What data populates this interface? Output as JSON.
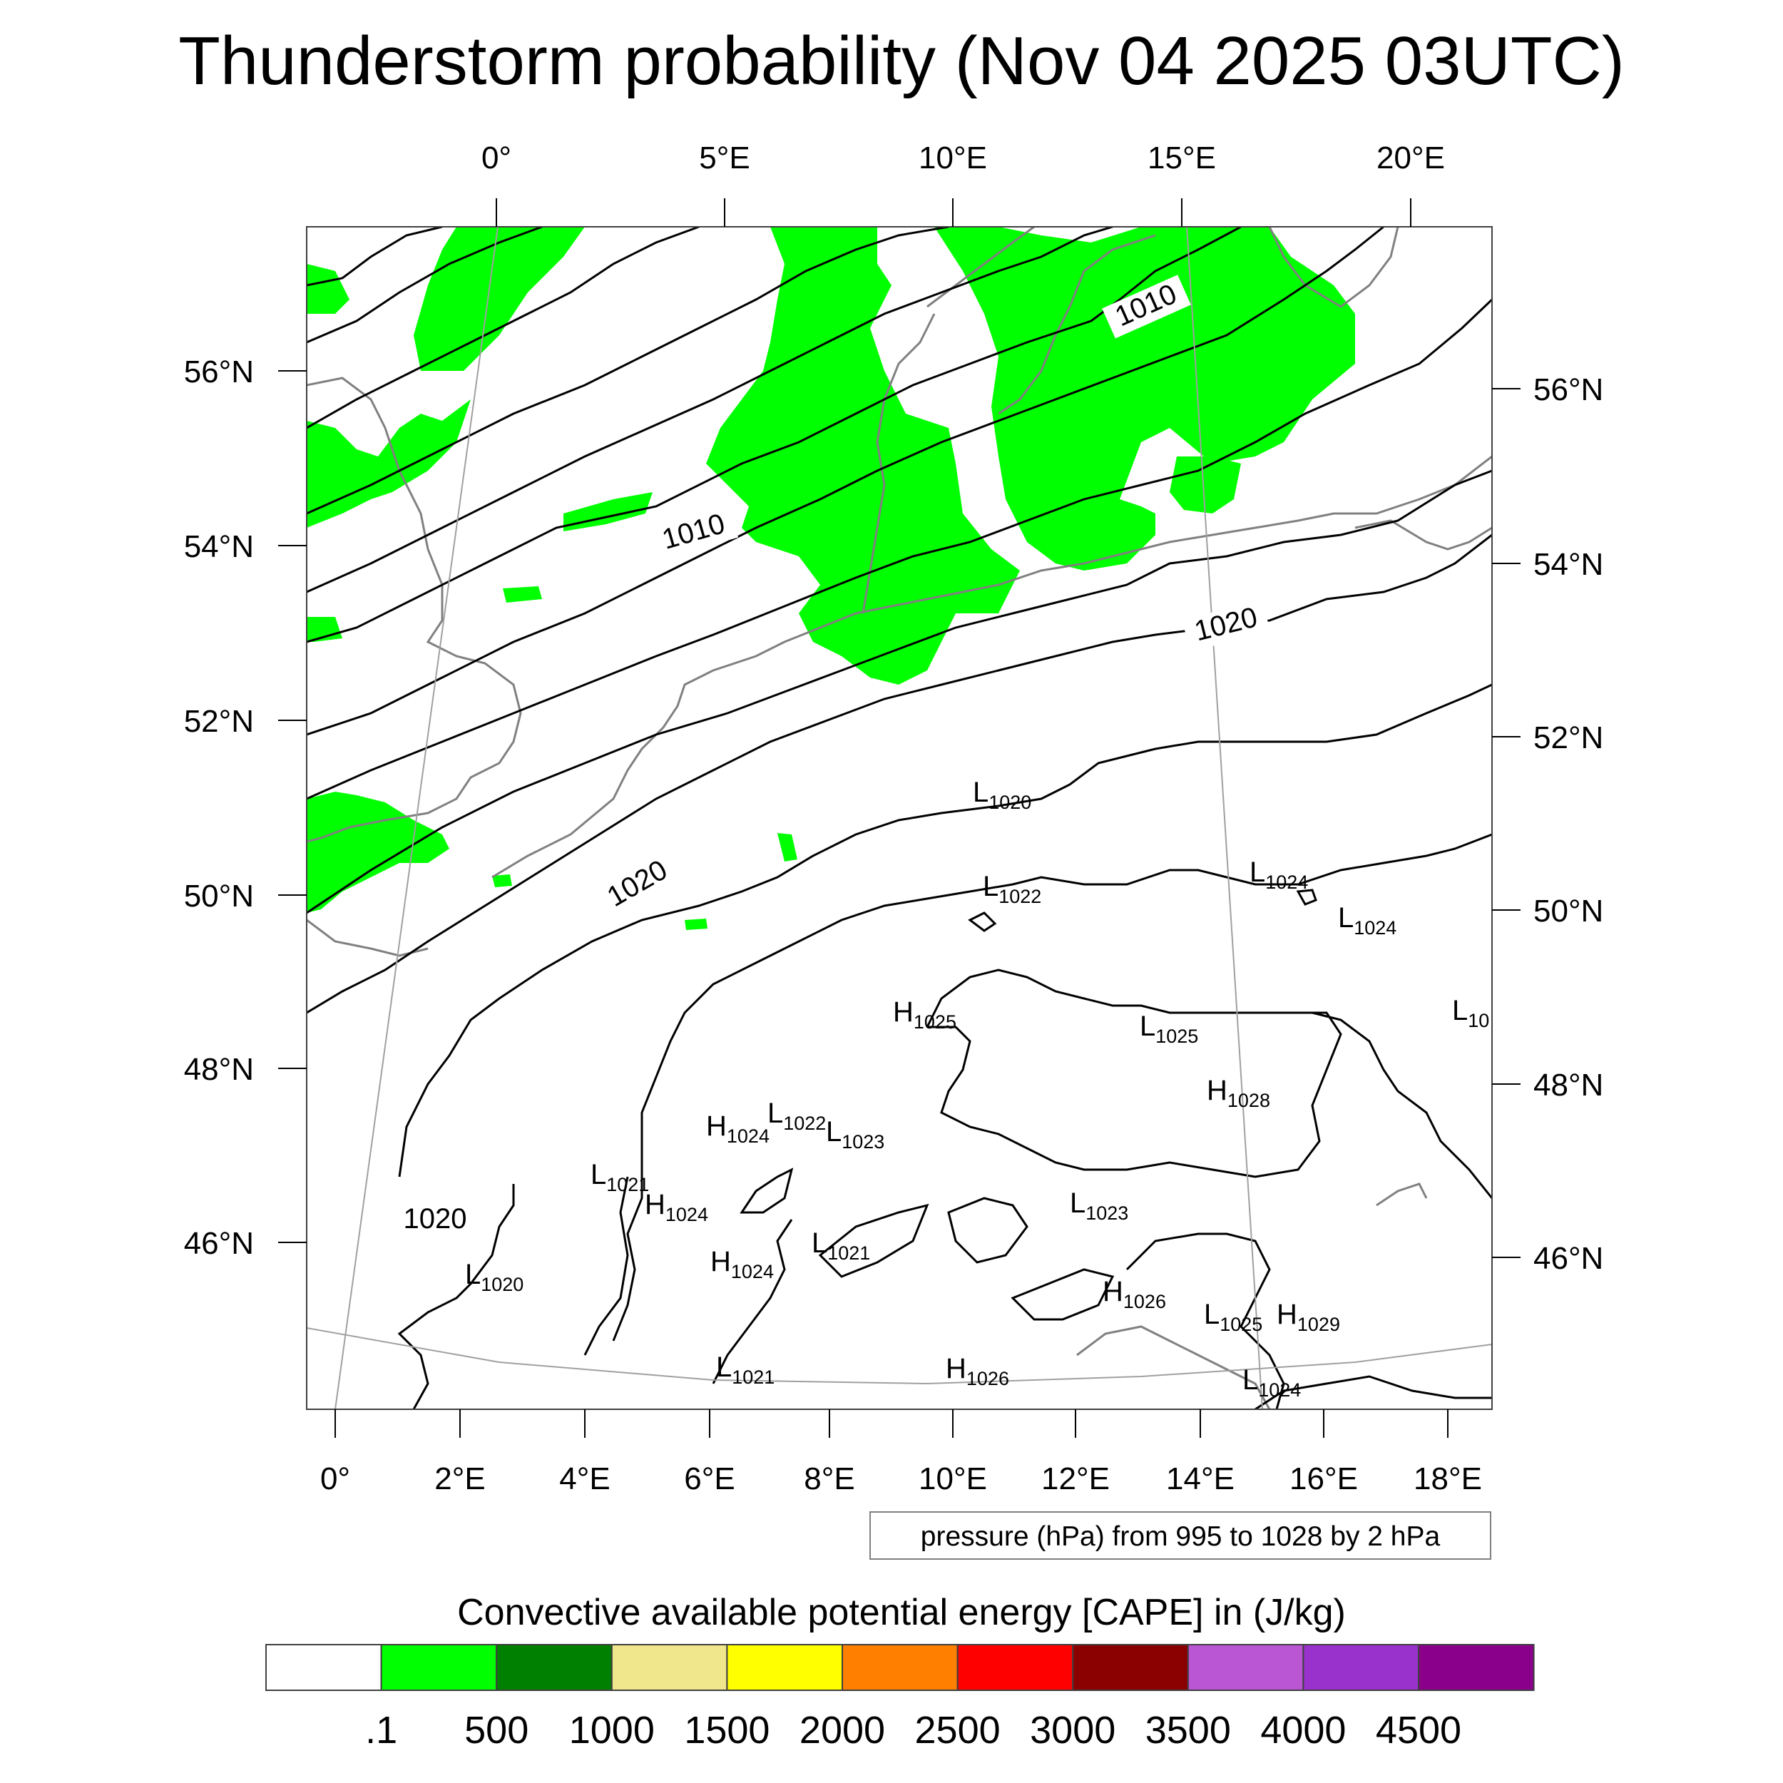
{
  "title": "Thunderstorm probability (Nov 04 2025 03UTC)",
  "top_longitude_labels": [
    "0°",
    "5°E",
    "10°E",
    "15°E",
    "20°E"
  ],
  "bottom_longitude_labels": [
    "0°",
    "2°E",
    "4°E",
    "6°E",
    "8°E",
    "10°E",
    "12°E",
    "14°E",
    "16°E",
    "18°E"
  ],
  "left_latitude_labels": [
    "56°N",
    "54°N",
    "52°N",
    "50°N",
    "48°N",
    "46°N"
  ],
  "right_latitude_labels": [
    "56°N",
    "54°N",
    "52°N",
    "50°N",
    "48°N",
    "46°N"
  ],
  "isobar_labels": [
    "1010",
    "1010",
    "1020",
    "1020",
    "1020"
  ],
  "pressure_centres": [
    {
      "letter": "L",
      "value": "1020"
    },
    {
      "letter": "L",
      "value": "1022"
    },
    {
      "letter": "L",
      "value": "1024"
    },
    {
      "letter": "L",
      "value": "1024"
    },
    {
      "letter": "L",
      "value": "10"
    },
    {
      "letter": "H",
      "value": "1025"
    },
    {
      "letter": "L",
      "value": "1025"
    },
    {
      "letter": "H",
      "value": "1028"
    },
    {
      "letter": "H",
      "value": "1024"
    },
    {
      "letter": "L",
      "value": "1022"
    },
    {
      "letter": "L",
      "value": "1023"
    },
    {
      "letter": "L",
      "value": "1021"
    },
    {
      "letter": "H",
      "value": "1024"
    },
    {
      "letter": "L",
      "value": "1023"
    },
    {
      "letter": "H",
      "value": "1024"
    },
    {
      "letter": "L",
      "value": "1021"
    },
    {
      "letter": "L",
      "value": "1020"
    },
    {
      "letter": "H",
      "value": "1026"
    },
    {
      "letter": "L",
      "value": "1025"
    },
    {
      "letter": "H",
      "value": "1029"
    },
    {
      "letter": "L",
      "value": "1021"
    },
    {
      "letter": "H",
      "value": "1026"
    },
    {
      "letter": "L",
      "value": "1024"
    }
  ],
  "pressure_note": "pressure (hPa) from 995 to 1028 by 2 hPa",
  "colorbar": {
    "caption": "Convective available potential energy [CAPE] in (J/kg)",
    "colors": [
      "#ffffff",
      "#00ff00",
      "#008000",
      "#f0e68c",
      "#ffff00",
      "#ff8000",
      "#ff0000",
      "#8b0000",
      "#ba55d3",
      "#9932cc",
      "#8b008b"
    ],
    "labels": [
      ".1",
      "500",
      "1000",
      "1500",
      "2000",
      "2500",
      "3000",
      "3500",
      "4000",
      "4500"
    ]
  },
  "colors": {
    "cape_fill": "#00ff00",
    "coastline": "#808080",
    "isobar": "#000000",
    "gridline": "#a0a0a0"
  }
}
